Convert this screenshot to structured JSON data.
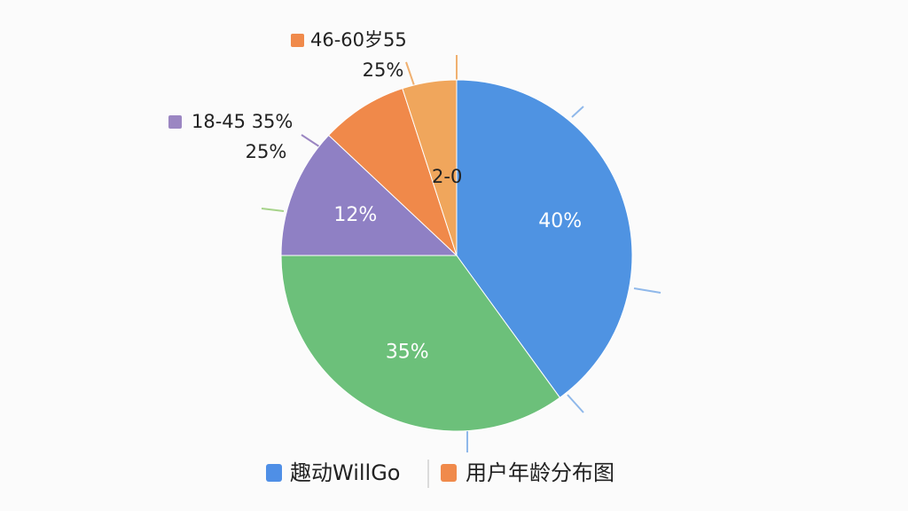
{
  "chart_data": {
    "type": "pie",
    "values": [
      40,
      35,
      12,
      8,
      5
    ],
    "value_labels": [
      "40%",
      "35%",
      "12%",
      null,
      null
    ],
    "colors": [
      "#4f93e2",
      "#6cc07a",
      "#8f80c4",
      "#f0894a",
      "#f0a65c"
    ],
    "annotations": [
      {
        "text": "46-60岁55",
        "subtext": "25%",
        "color": "#f08a4b"
      },
      {
        "text": "18-45 35%",
        "subtext": "25%",
        "color": "#9b86c2"
      },
      {
        "text": "2-0"
      }
    ],
    "legend": [
      {
        "name": "趣动WillGo",
        "color": "#4f8fe6"
      },
      {
        "name": "用户年龄分布图",
        "color": "#f08a4b"
      }
    ]
  }
}
